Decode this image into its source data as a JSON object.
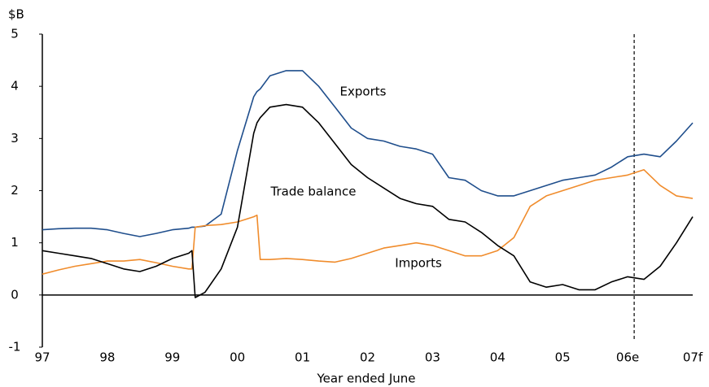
{
  "chart_data": {
    "type": "line",
    "y_unit": "$B",
    "xlabel": "Year ended June",
    "x": [
      1997,
      1997.25,
      1997.5,
      1997.75,
      1998,
      1998.25,
      1998.5,
      1998.75,
      1999,
      1999.25,
      1999.3,
      1999.35,
      1999.5,
      1999.75,
      2000,
      2000.25,
      2000.3,
      2000.35,
      2000.5,
      2000.75,
      2001,
      2001.25,
      2001.5,
      2001.75,
      2002,
      2002.25,
      2002.5,
      2002.75,
      2003,
      2003.25,
      2003.5,
      2003.75,
      2004,
      2004.25,
      2004.5,
      2004.75,
      2005,
      2005.25,
      2005.5,
      2005.75,
      2006,
      2006.25,
      2006.5,
      2006.75,
      2007
    ],
    "series": [
      {
        "name": "Exports",
        "color": "#1f4e8c",
        "values": [
          1.25,
          1.27,
          1.28,
          1.28,
          1.25,
          1.18,
          1.12,
          1.18,
          1.25,
          1.28,
          1.3,
          1.3,
          1.32,
          1.55,
          2.77,
          3.8,
          3.9,
          3.95,
          4.2,
          4.3,
          4.3,
          4.0,
          3.6,
          3.2,
          3.0,
          2.95,
          2.85,
          2.8,
          2.7,
          2.25,
          2.2,
          2.0,
          1.9,
          1.9,
          2.0,
          2.1,
          2.2,
          2.25,
          2.3,
          2.45,
          2.65,
          2.7,
          2.65,
          2.95,
          3.3
        ]
      },
      {
        "name": "Imports",
        "color": "#f08c2c",
        "values": [
          0.4,
          0.48,
          0.55,
          0.6,
          0.65,
          0.65,
          0.68,
          0.62,
          0.55,
          0.5,
          0.5,
          1.3,
          1.33,
          1.35,
          1.4,
          1.5,
          1.53,
          0.68,
          0.68,
          0.7,
          0.68,
          0.65,
          0.63,
          0.7,
          0.8,
          0.9,
          0.95,
          1.0,
          0.95,
          0.85,
          0.75,
          0.75,
          0.85,
          1.1,
          1.7,
          1.9,
          2.0,
          2.1,
          2.2,
          2.25,
          2.3,
          2.4,
          2.1,
          1.9,
          1.85
        ]
      },
      {
        "name": "Trade balance",
        "color": "#000000",
        "values": [
          0.85,
          0.8,
          0.75,
          0.7,
          0.6,
          0.5,
          0.45,
          0.55,
          0.7,
          0.8,
          0.85,
          -0.05,
          0.05,
          0.5,
          1.3,
          3.1,
          3.3,
          3.4,
          3.6,
          3.65,
          3.6,
          3.3,
          2.9,
          2.5,
          2.25,
          2.05,
          1.85,
          1.75,
          1.7,
          1.45,
          1.4,
          1.2,
          0.95,
          0.75,
          0.25,
          0.15,
          0.2,
          0.1,
          0.1,
          0.25,
          0.35,
          0.3,
          0.55,
          1.0,
          1.5
        ]
      }
    ],
    "xlim": [
      1997,
      2007
    ],
    "xticks": [
      {
        "value": 1997,
        "label": "97"
      },
      {
        "value": 1998,
        "label": "98"
      },
      {
        "value": 1999,
        "label": "99"
      },
      {
        "value": 2000,
        "label": "00"
      },
      {
        "value": 2001,
        "label": "01"
      },
      {
        "value": 2002,
        "label": "02"
      },
      {
        "value": 2003,
        "label": "03"
      },
      {
        "value": 2004,
        "label": "04"
      },
      {
        "value": 2005,
        "label": "05"
      },
      {
        "value": 2006,
        "label": "06e"
      },
      {
        "value": 2007,
        "label": "07f"
      }
    ],
    "ylim": [
      -1,
      5
    ],
    "yticks": [
      -1,
      0,
      1,
      2,
      3,
      4,
      5
    ],
    "forecast_line": 2006.1
  }
}
